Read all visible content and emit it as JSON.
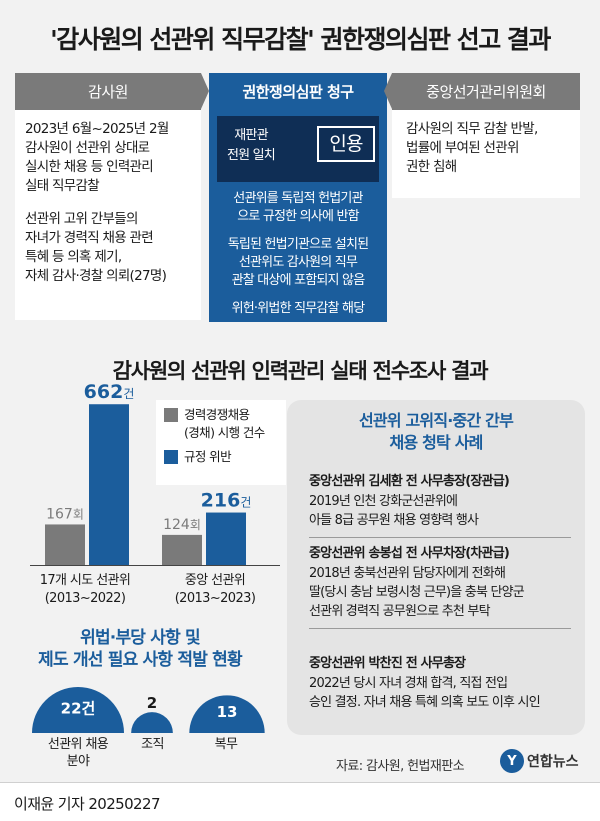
{
  "title": "'감사원의 선관위 직무감찰' 권한쟁의심판 선고 결과",
  "left_column": {
    "header": "감사원",
    "para1_lines": [
      "2023년 6월~2025년 2월",
      "감사원이 선관위 상대로",
      "실시한 채용 등 인력관리",
      "실태 직무감찰"
    ],
    "para2_lines": [
      "선관위 고위 간부들의",
      "자녀가 경력직 채용 관련",
      "특혜 등 의혹 제기,",
      "자체 감사·경찰 의뢰(27명)"
    ]
  },
  "middle_column": {
    "header": "권한쟁의심판 청구",
    "verdict_lines": [
      "재판관",
      "전원 일치"
    ],
    "verdict_stamp": "인용",
    "items": [
      [
        "선관위를 독립적 헌법기관",
        "으로 규정한 의사에 반함"
      ],
      [
        "독립된 헌법기관으로 설치된",
        "선관위도 감사원의 직무",
        "관찰 대상에 포함되지 않음"
      ],
      [
        "위헌·위법한 직무감찰 해당"
      ]
    ]
  },
  "right_column": {
    "header": "중앙선거관리위원회",
    "lines": [
      "감사원의 직무 감찰 반발,",
      "법률에 부여된 선관위",
      "권한 침해"
    ]
  },
  "survey_title": "감사원의 선관위 인력관리 실태 전수조사 결과",
  "chart_data": {
    "type": "bar",
    "categories": [
      "17개 시도 선관위 (2013~2022)",
      "중앙 선관위 (2013~2023)"
    ],
    "category_lines": [
      [
        "17개 시도 선관위",
        "(2013~2022)"
      ],
      [
        "중앙 선관위",
        "(2013~2023)"
      ]
    ],
    "series": [
      {
        "name": "경력경쟁채용(경채) 시행 건수",
        "legend_lines": [
          "경력경쟁채용",
          "(경채) 시행 건수"
        ],
        "values": [
          167,
          124
        ],
        "unit": "회",
        "color": "#7a7a7a"
      },
      {
        "name": "규정 위반",
        "legend_lines": [
          "규정 위반"
        ],
        "values": [
          662,
          216
        ],
        "unit": "건",
        "color": "#1b5d9c"
      }
    ],
    "ylim": [
      0,
      700
    ],
    "legend": "top-right"
  },
  "violations": {
    "title_lines": [
      "위법·부당 사항 및",
      "제도 개선 필요 사항 적발 현황"
    ],
    "items": [
      {
        "value": "22건",
        "count": 22,
        "label_lines": [
          "선관위 채용",
          "분야"
        ]
      },
      {
        "value": "2",
        "count": 2,
        "label_lines": [
          "조직"
        ]
      },
      {
        "value": "13",
        "count": 13,
        "label_lines": [
          "복무"
        ]
      }
    ]
  },
  "cases": {
    "title_lines": [
      "선관위 고위직·중간 간부",
      "채용 청탁 사례"
    ],
    "items": [
      {
        "heading": "중앙선관위 김세환 전 사무총장(장관급)",
        "lines": [
          "2019년 인천 강화군선관위에",
          "아들 8급 공무원 채용 영향력 행사"
        ]
      },
      {
        "heading": "중앙선관위 송봉섭 전 사무차장(차관급)",
        "lines": [
          "2018년 충북선관위 담당자에게 전화해",
          "딸(당시 충남 보령시청 근무)을 충북 단양군",
          "선관위 경력직 공무원으로 추천 부탁"
        ]
      },
      {
        "heading": "중앙선관위 박찬진 전 사무총장",
        "lines": [
          "2022년 당시 자녀 경채 합격, 직접 전입",
          "승인 결정. 자녀 채용 특혜 의혹 보도 이후 시인"
        ]
      }
    ]
  },
  "source": "자료: 감사원, 헌법재판소",
  "logo_text": "연합뉴스",
  "logo_mark": "Y",
  "footer": "이재윤 기자  20250227",
  "colors": {
    "blue": "#1b5d9c",
    "navy": "#0f2e55",
    "gray": "#7a7a7a"
  }
}
